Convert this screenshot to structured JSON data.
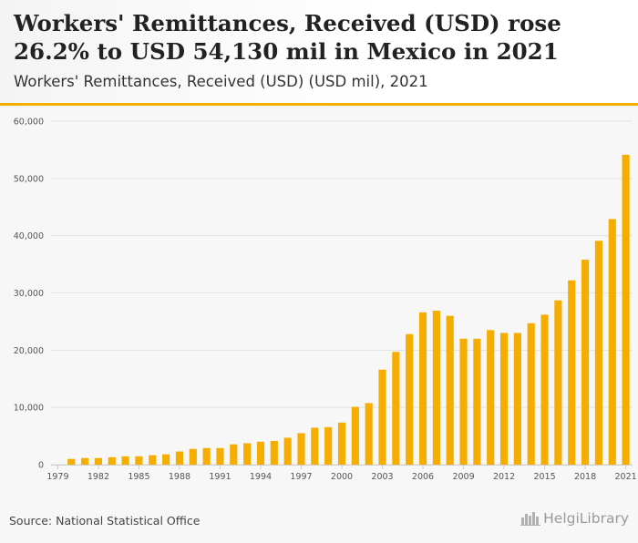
{
  "header": {
    "title": "Workers' Remittances, Received (USD) rose 26.2% to USD 54,130 mil in Mexico in 2021",
    "subtitle": "Workers' Remittances, Received (USD) (USD mil), 2021"
  },
  "footer": {
    "source": "Source: National Statistical Office",
    "brand": "HelgiLibrary",
    "brand_icon": "city-skyline-icon"
  },
  "colors": {
    "bar": "#f5ad00",
    "accent": "#f5ad00",
    "grid": "#e2e2e2",
    "plot_bg": "#f7f7f7"
  },
  "chart_data": {
    "type": "bar",
    "title": "Workers' Remittances, Received (USD) rose 26.2% to USD 54,130 mil in Mexico in 2021",
    "subtitle": "Workers' Remittances, Received (USD) (USD mil), 2021",
    "xlabel": "",
    "ylabel": "",
    "ylim": [
      0,
      60000
    ],
    "y_ticks": [
      0,
      10000,
      20000,
      30000,
      40000,
      50000,
      60000
    ],
    "y_tick_labels": [
      "0",
      "10,000",
      "20,000",
      "30,000",
      "40,000",
      "50,000",
      "60,000"
    ],
    "grid": true,
    "legend": "none",
    "categories": [
      "1979",
      "1980",
      "1981",
      "1982",
      "1983",
      "1984",
      "1985",
      "1986",
      "1987",
      "1988",
      "1989",
      "1990",
      "1991",
      "1992",
      "1993",
      "1994",
      "1995",
      "1996",
      "1997",
      "1998",
      "1999",
      "2000",
      "2001",
      "2002",
      "2003",
      "2004",
      "2005",
      "2006",
      "2007",
      "2008",
      "2009",
      "2010",
      "2011",
      "2012",
      "2013",
      "2014",
      "2015",
      "2016",
      "2017",
      "2018",
      "2019",
      "2020",
      "2021"
    ],
    "x_tick_labels": [
      "1979",
      "1982",
      "1985",
      "1988",
      "1991",
      "1994",
      "1997",
      "2000",
      "2003",
      "2006",
      "2009",
      "2012",
      "2015",
      "2018",
      "2021"
    ],
    "series": [
      {
        "values": [
          null,
          1000,
          1150,
          1150,
          1300,
          1450,
          1450,
          1650,
          1800,
          2300,
          2750,
          2900,
          2900,
          3550,
          3750,
          4000,
          4150,
          4700,
          5500,
          6450,
          6550,
          7350,
          10100,
          10750,
          16600,
          19700,
          22800,
          26600,
          26900,
          26000,
          22000,
          22000,
          23500,
          23000,
          23000,
          24700,
          26200,
          28700,
          32200,
          35800,
          39100,
          42900,
          54130
        ]
      }
    ]
  }
}
